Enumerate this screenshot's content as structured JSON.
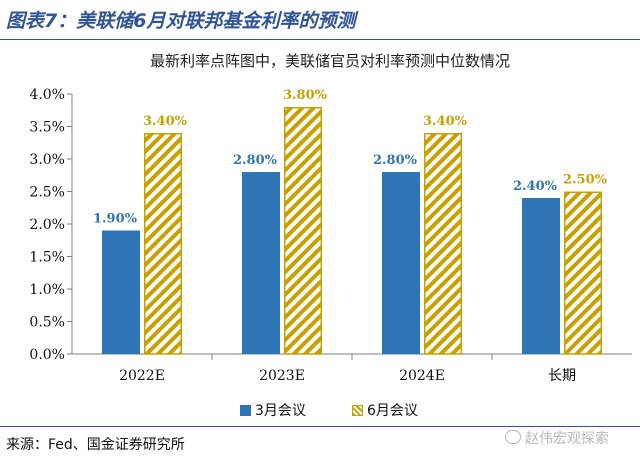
{
  "header": {
    "title": "图表7：美联储6月对联邦基金利率的预测",
    "subtitle": "最新利率点阵图中，美联储官员对利率预测中位数情况"
  },
  "chart_data": {
    "type": "bar",
    "categories": [
      "2022E",
      "2023E",
      "2024E",
      "长期"
    ],
    "series": [
      {
        "name": "3月会议",
        "values": [
          1.9,
          2.8,
          2.8,
          2.4
        ],
        "labels": [
          "1.90%",
          "2.80%",
          "2.80%",
          "2.40%"
        ]
      },
      {
        "name": "6月会议",
        "values": [
          3.4,
          3.8,
          3.4,
          2.5
        ],
        "labels": [
          "3.40%",
          "3.80%",
          "3.40%",
          "2.50%"
        ]
      }
    ],
    "ylim": [
      0,
      4.0
    ],
    "yticks": [
      "0.0%",
      "0.5%",
      "1.0%",
      "1.5%",
      "2.0%",
      "2.5%",
      "3.0%",
      "3.5%",
      "4.0%"
    ],
    "grid": false,
    "legend_position": "bottom",
    "colors": {
      "series1": "#2e75b6",
      "series2_stroke": "#c8a000",
      "series1_label": "#2e75b6",
      "series2_label": "#c8a000"
    }
  },
  "footer": {
    "source": "来源：Fed、国金证券研究所",
    "watermark": "赵伟宏观探索"
  }
}
